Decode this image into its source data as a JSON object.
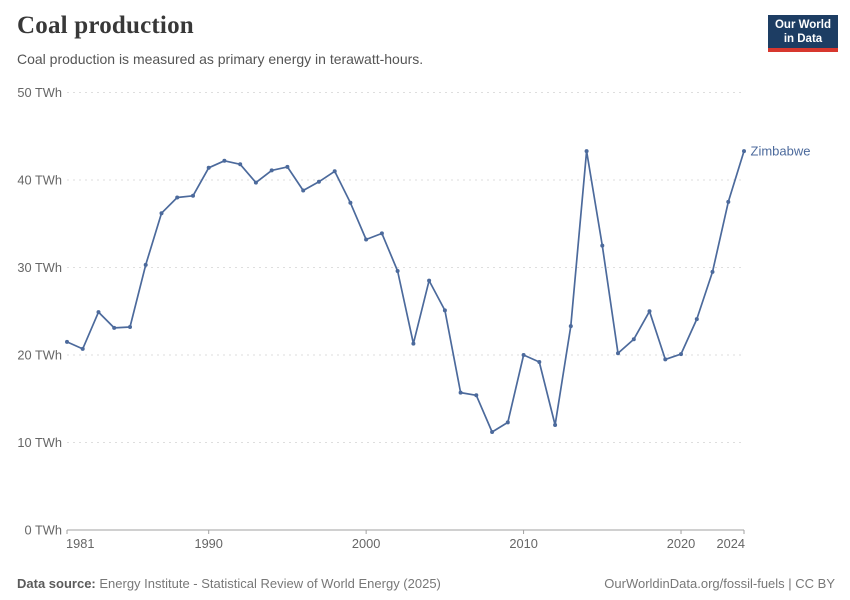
{
  "header": {
    "title": "Coal production",
    "subtitle": "Coal production is measured as primary energy in terawatt-hours.",
    "logo": {
      "line1": "Our World",
      "line2": "in Data",
      "bg_color": "#1d3d63",
      "accent_color": "#d7372e"
    }
  },
  "chart_data": {
    "type": "line",
    "title": "Coal production",
    "entity": "Zimbabwe",
    "unit": "TWh",
    "line_color": "#4C6A9C",
    "grid": "horizontal-dashed",
    "legend_position": "right-of-last-point",
    "xlim": [
      1981,
      2024
    ],
    "ylim": [
      0,
      50
    ],
    "x_ticks": [
      1981,
      1990,
      2000,
      2010,
      2020,
      2024
    ],
    "y_ticks": [
      0,
      10,
      20,
      30,
      40,
      50
    ],
    "y_tick_suffix": " TWh",
    "x": [
      1981,
      1982,
      1983,
      1984,
      1985,
      1986,
      1987,
      1988,
      1989,
      1990,
      1991,
      1992,
      1993,
      1994,
      1995,
      1996,
      1997,
      1998,
      1999,
      2000,
      2001,
      2002,
      2003,
      2004,
      2005,
      2006,
      2007,
      2008,
      2009,
      2010,
      2011,
      2012,
      2013,
      2014,
      2015,
      2016,
      2017,
      2018,
      2019,
      2020,
      2021,
      2022,
      2023,
      2024
    ],
    "values": [
      21.5,
      20.7,
      24.9,
      23.1,
      23.2,
      30.3,
      36.2,
      38.0,
      38.2,
      41.4,
      42.2,
      41.8,
      39.7,
      41.1,
      41.5,
      38.8,
      39.8,
      41.0,
      37.4,
      33.2,
      33.9,
      29.6,
      21.3,
      28.5,
      25.1,
      15.7,
      15.4,
      11.2,
      12.3,
      20.0,
      19.2,
      12.0,
      23.3,
      43.3,
      32.5,
      20.2,
      21.8,
      25.0,
      19.5,
      20.1,
      24.1,
      29.5,
      37.5,
      43.3
    ]
  },
  "footer": {
    "source_label": "Data source:",
    "source_text": " Energy Institute - Statistical Review of World Energy (2025)",
    "rights": "OurWorldinData.org/fossil-fuels | CC BY"
  }
}
